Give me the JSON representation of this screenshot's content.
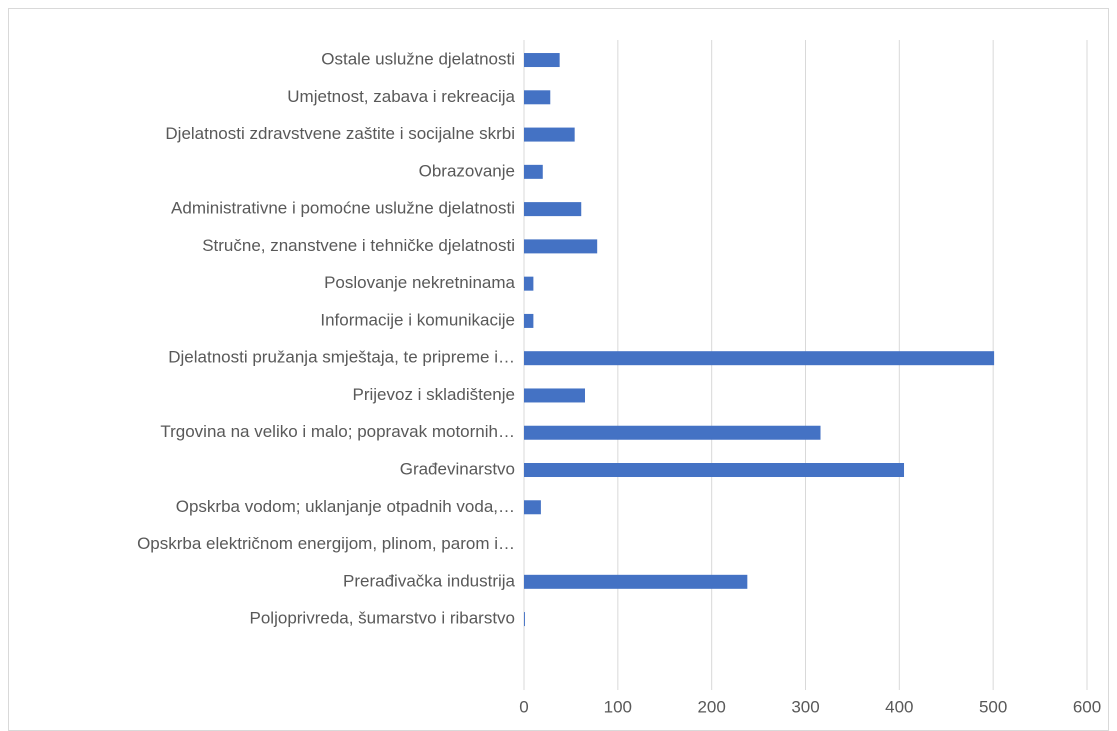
{
  "chart_data": {
    "type": "barh",
    "categories": [
      "Ostale uslužne djelatnosti",
      "Umjetnost, zabava i rekreacija",
      "Djelatnosti zdravstvene zaštite i socijalne skrbi",
      "Obrazovanje",
      "Administrativne i pomoćne uslužne djelatnosti",
      "Stručne, znanstvene i tehničke djelatnosti",
      "Poslovanje nekretninama",
      "Informacije i komunikacije",
      "Djelatnosti pružanja smještaja, te pripreme i…",
      "Prijevoz i skladištenje",
      "Trgovina na veliko i malo; popravak motornih…",
      "Građevinarstvo",
      "Opskrba vodom; uklanjanje otpadnih voda,…",
      "Opskrba električnom energijom, plinom, parom i…",
      "Prerađivačka industrija",
      "Poljoprivreda, šumarstvo i ribarstvo"
    ],
    "values": [
      38,
      28,
      54,
      20,
      61,
      78,
      10,
      10,
      501,
      65,
      316,
      405,
      18,
      0,
      238,
      1
    ],
    "color": "#4472c4",
    "xlim": [
      0,
      600
    ],
    "xticks": [
      0,
      100,
      200,
      300,
      400,
      500,
      600
    ],
    "grid": true
  }
}
